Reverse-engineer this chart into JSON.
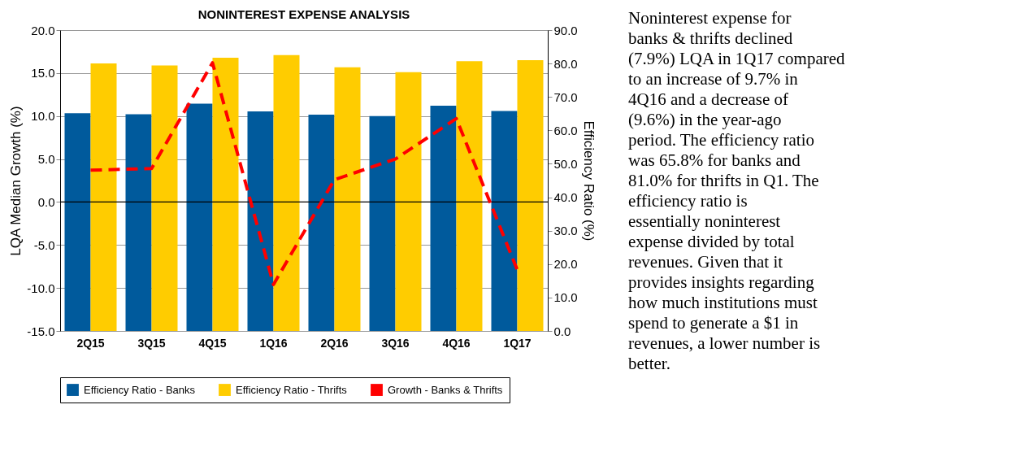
{
  "chart_data": {
    "type": "bar",
    "title": "NONINTEREST EXPENSE ANALYSIS",
    "ylabel": "LQA Median Growth (%)",
    "y2label": "Efficiency Ratio (%)",
    "categories": [
      "2Q15",
      "3Q15",
      "4Q15",
      "1Q16",
      "2Q16",
      "3Q16",
      "4Q16",
      "1Q17"
    ],
    "series": [
      {
        "name": "Efficiency Ratio - Banks",
        "color": "#005a9c",
        "axis": "y2",
        "values": [
          65.1,
          64.8,
          68.0,
          65.7,
          64.7,
          64.3,
          67.4,
          65.8
        ]
      },
      {
        "name": "Efficiency Ratio - Thrifts",
        "color": "#ffcc00",
        "axis": "y2",
        "values": [
          80.0,
          79.4,
          81.7,
          82.5,
          78.9,
          77.4,
          80.7,
          81.0
        ]
      },
      {
        "name": "Growth - Banks & Thrifts",
        "type": "line",
        "color": "#ff0000",
        "line_style": "dashed",
        "axis": "y",
        "values": [
          3.7,
          3.9,
          16.2,
          -9.6,
          2.6,
          5.0,
          9.7,
          -7.9
        ]
      }
    ],
    "ylim": [
      -15,
      20
    ],
    "yticks": [
      {
        "value": -15,
        "label": "-15.0"
      },
      {
        "value": -10,
        "label": "-10.0"
      },
      {
        "value": -5,
        "label": "-5.0"
      },
      {
        "value": 0,
        "label": "0.0"
      },
      {
        "value": 5,
        "label": "5.0"
      },
      {
        "value": 10,
        "label": "10.0"
      },
      {
        "value": 15,
        "label": "15.0"
      },
      {
        "value": 20,
        "label": "20.0"
      }
    ],
    "y2lim": [
      0,
      90
    ],
    "y2ticks": [
      {
        "value": 0,
        "label": "0.0"
      },
      {
        "value": 10,
        "label": "10.0"
      },
      {
        "value": 20,
        "label": "20.0"
      },
      {
        "value": 30,
        "label": "30.0"
      },
      {
        "value": 40,
        "label": "40.0"
      },
      {
        "value": 50,
        "label": "50.0"
      },
      {
        "value": 60,
        "label": "60.0"
      },
      {
        "value": 70,
        "label": "70.0"
      },
      {
        "value": 80,
        "label": "80.0"
      },
      {
        "value": 90,
        "label": "90.0"
      }
    ],
    "ref_lines": [
      {
        "axis": "y",
        "value": 0,
        "color": "#000000"
      }
    ],
    "grid": "y",
    "legend": "bottom",
    "annotations": [
      "Noninterest expense for banks & thrifts declined (7.9%) LQA in 1Q17 compared to an increase of 9.7% in 4Q16 and a decrease of (9.6%) in the year-ago period. The efficiency ratio was 65.8% for banks and 81.0% for thrifts in Q1. The efficiency ratio is essentially noninterest expense divided by total revenues. Given that it provides insights regarding how much institutions must spend to generate a $1 in revenues, a lower number is better."
    ]
  }
}
